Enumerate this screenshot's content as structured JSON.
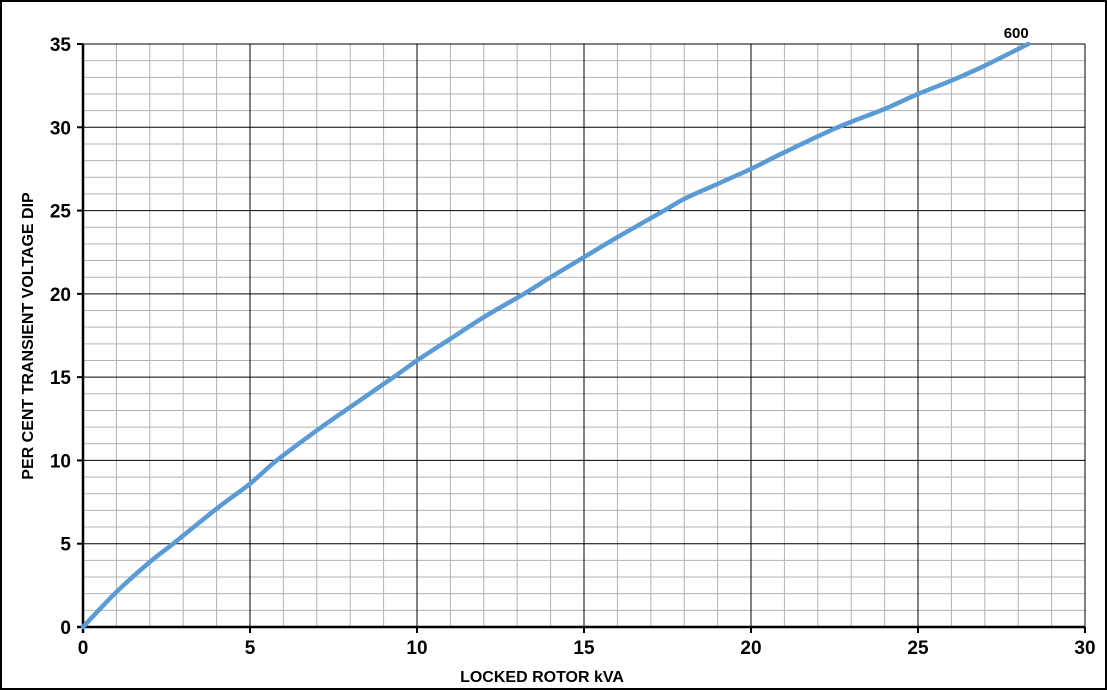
{
  "chart_data": {
    "type": "line",
    "title": "",
    "xlabel": "LOCKED ROTOR kVA",
    "ylabel": "PER CENT TRANSIENT VOLTAGE DIP",
    "xlim": [
      0,
      30
    ],
    "ylim": [
      0,
      35
    ],
    "x_ticks": [
      0,
      5,
      10,
      15,
      20,
      25,
      30
    ],
    "y_ticks": [
      0,
      5,
      10,
      15,
      20,
      25,
      30,
      35
    ],
    "x_minor_step": 1,
    "y_minor_step": 1,
    "grid": true,
    "series": [
      {
        "name": "",
        "color": "#5b9bd5",
        "x": [
          0,
          1,
          2,
          2.7,
          4,
          5,
          5.8,
          7,
          8,
          9.3,
          10,
          11,
          12,
          13.2,
          14,
          15,
          16,
          17.4,
          18,
          19,
          20,
          21,
          22.6,
          24,
          25,
          26,
          27,
          28.3
        ],
        "y": [
          0,
          2.1,
          3.9,
          5,
          7.1,
          8.6,
          10,
          11.8,
          13.2,
          15,
          16,
          17.3,
          18.6,
          20,
          21,
          22.2,
          23.4,
          25,
          25.7,
          26.6,
          27.5,
          28.5,
          30,
          31.1,
          32,
          32.8,
          33.7,
          35
        ]
      }
    ],
    "annotations": [
      {
        "text": "600",
        "x": 28.3,
        "y": 35
      }
    ]
  }
}
